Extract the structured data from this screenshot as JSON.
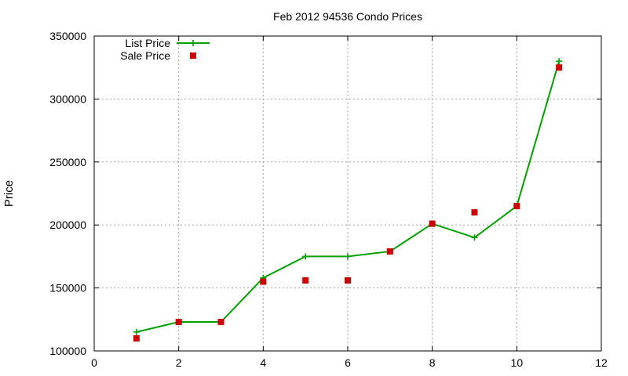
{
  "chart_data": {
    "type": "line",
    "title": "Feb 2012 94536 Condo Prices",
    "xlabel": "",
    "ylabel": "Price",
    "xlim": [
      0,
      12
    ],
    "ylim": [
      100000,
      350000
    ],
    "xticks": [
      0,
      2,
      4,
      6,
      8,
      10,
      12
    ],
    "yticks": [
      100000,
      150000,
      200000,
      250000,
      300000,
      350000
    ],
    "grid": true,
    "legend_position": "top-left",
    "series": [
      {
        "name": "List Price",
        "style": "line-plus",
        "color": "#00a000",
        "points": [
          {
            "x": 1,
            "y": 115000
          },
          {
            "x": 2,
            "y": 123000
          },
          {
            "x": 3,
            "y": 123000
          },
          {
            "x": 4,
            "y": 158000
          },
          {
            "x": 5,
            "y": 175000
          },
          {
            "x": 6,
            "y": 175000
          },
          {
            "x": 7,
            "y": 179000
          },
          {
            "x": 8,
            "y": 201000
          },
          {
            "x": 9,
            "y": 190000
          },
          {
            "x": 10,
            "y": 215000
          },
          {
            "x": 11,
            "y": 330000
          }
        ]
      },
      {
        "name": "Sale Price",
        "style": "square",
        "color": "#cc0000",
        "points": [
          {
            "x": 1,
            "y": 110000
          },
          {
            "x": 2,
            "y": 123000
          },
          {
            "x": 3,
            "y": 123000
          },
          {
            "x": 4,
            "y": 155000
          },
          {
            "x": 5,
            "y": 156000
          },
          {
            "x": 6,
            "y": 156000
          },
          {
            "x": 7,
            "y": 179000
          },
          {
            "x": 8,
            "y": 201000
          },
          {
            "x": 9,
            "y": 210000
          },
          {
            "x": 10,
            "y": 215000
          },
          {
            "x": 11,
            "y": 325000
          }
        ]
      }
    ]
  }
}
